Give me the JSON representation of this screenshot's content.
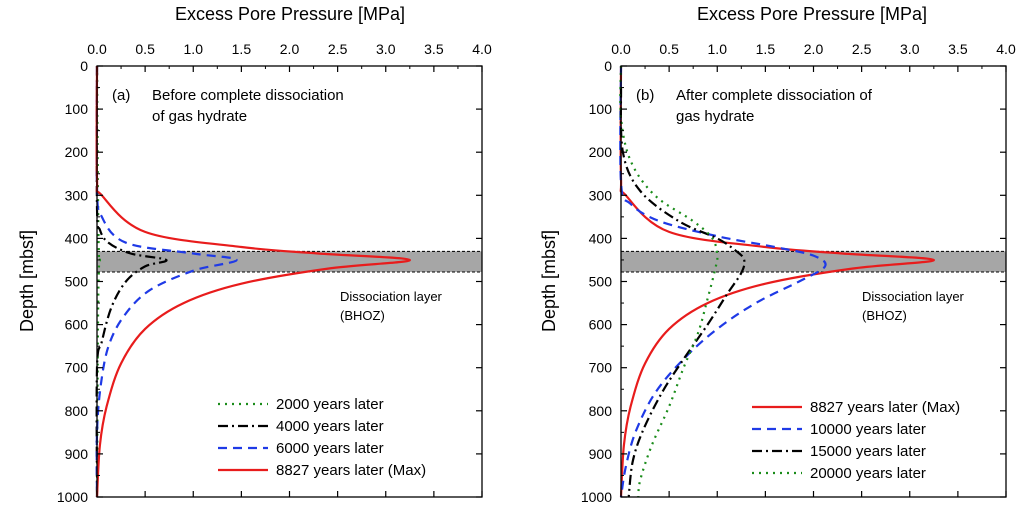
{
  "chart_data": [
    {
      "type": "line",
      "panel_label": "(a)",
      "annotation": [
        "Before complete dissociation",
        "of gas hydrate"
      ],
      "xlabel": "Excess Pore Pressure [MPa]",
      "ylabel": "Depth [mbsf]",
      "xlim": [
        0,
        4.0
      ],
      "ylim": [
        0,
        1000
      ],
      "y_inverted": true,
      "x_axis_position": "top",
      "xticks": [
        "0.0",
        "0.5",
        "1.0",
        "1.5",
        "2.0",
        "2.5",
        "3.0",
        "3.5",
        "4.0"
      ],
      "yticks": [
        "0",
        "100",
        "200",
        "300",
        "400",
        "500",
        "600",
        "700",
        "800",
        "900",
        "1000"
      ],
      "band": {
        "y_top": 430,
        "y_bottom": 478,
        "label": [
          "Dissociation layer",
          "(BHOZ)"
        ]
      },
      "legend_position": "bottom-right",
      "series": [
        {
          "name": "2000 years later",
          "color": "#1a8c1a",
          "style": "dotted",
          "points": [
            [
              0,
              0
            ],
            [
              0.01,
              300
            ],
            [
              0.02,
              440
            ],
            [
              0.03,
              450
            ],
            [
              0.02,
              470
            ],
            [
              0.01,
              600
            ],
            [
              0,
              1000
            ]
          ]
        },
        {
          "name": "4000 years later",
          "color": "#000000",
          "style": "dashdot",
          "points": [
            [
              0,
              0
            ],
            [
              0,
              330
            ],
            [
              0.03,
              380
            ],
            [
              0.12,
              410
            ],
            [
              0.35,
              435
            ],
            [
              0.72,
              450
            ],
            [
              0.5,
              465
            ],
            [
              0.3,
              500
            ],
            [
              0.15,
              560
            ],
            [
              0.05,
              640
            ],
            [
              0,
              700
            ],
            [
              0,
              1000
            ]
          ]
        },
        {
          "name": "6000 years later",
          "color": "#1f3ae6",
          "style": "dashed",
          "points": [
            [
              0,
              0
            ],
            [
              0,
              280
            ],
            [
              0.05,
              350
            ],
            [
              0.3,
              410
            ],
            [
              1.0,
              435
            ],
            [
              1.45,
              450
            ],
            [
              1.0,
              475
            ],
            [
              0.55,
              520
            ],
            [
              0.28,
              580
            ],
            [
              0.12,
              650
            ],
            [
              0.04,
              740
            ],
            [
              0,
              850
            ],
            [
              0,
              1000
            ]
          ]
        },
        {
          "name": "8827 years later (Max)",
          "color": "#e81c1c",
          "style": "solid",
          "points": [
            [
              0,
              0
            ],
            [
              0,
              260
            ],
            [
              0.05,
              300
            ],
            [
              0.5,
              385
            ],
            [
              1.5,
              420
            ],
            [
              2.3,
              435
            ],
            [
              3.25,
              450
            ],
            [
              2.4,
              470
            ],
            [
              1.5,
              505
            ],
            [
              0.9,
              550
            ],
            [
              0.5,
              610
            ],
            [
              0.25,
              690
            ],
            [
              0.1,
              790
            ],
            [
              0.03,
              880
            ],
            [
              0,
              1000
            ]
          ]
        }
      ]
    },
    {
      "type": "line",
      "panel_label": "(b)",
      "annotation": [
        "After complete dissociation of",
        "gas hydrate"
      ],
      "xlabel": "Excess Pore Pressure [MPa]",
      "ylabel": "Depth [mbsf]",
      "xlim": [
        0,
        4.0
      ],
      "ylim": [
        0,
        1000
      ],
      "y_inverted": true,
      "x_axis_position": "top",
      "xticks": [
        "0.0",
        "0.5",
        "1.0",
        "1.5",
        "2.0",
        "2.5",
        "3.0",
        "3.5",
        "4.0"
      ],
      "yticks": [
        "0",
        "100",
        "200",
        "300",
        "400",
        "500",
        "600",
        "700",
        "800",
        "900",
        "1000"
      ],
      "band": {
        "y_top": 430,
        "y_bottom": 478,
        "label": [
          "Dissociation layer",
          "(BHOZ)"
        ]
      },
      "legend_position": "bottom-right",
      "series": [
        {
          "name": "8827  years later (Max)",
          "color": "#e81c1c",
          "style": "solid",
          "points": [
            [
              0,
              0
            ],
            [
              0,
              260
            ],
            [
              0.05,
              300
            ],
            [
              0.5,
              385
            ],
            [
              1.5,
              420
            ],
            [
              2.3,
              435
            ],
            [
              3.25,
              450
            ],
            [
              2.4,
              470
            ],
            [
              1.5,
              505
            ],
            [
              0.9,
              550
            ],
            [
              0.5,
              610
            ],
            [
              0.25,
              690
            ],
            [
              0.1,
              790
            ],
            [
              0.03,
              880
            ],
            [
              0,
              1000
            ]
          ]
        },
        {
          "name": "10000 years later",
          "color": "#1f3ae6",
          "style": "dashed",
          "points": [
            [
              0,
              0
            ],
            [
              0,
              270
            ],
            [
              0.1,
              320
            ],
            [
              0.4,
              360
            ],
            [
              1.0,
              395
            ],
            [
              1.6,
              420
            ],
            [
              2.0,
              440
            ],
            [
              2.12,
              465
            ],
            [
              1.85,
              500
            ],
            [
              1.4,
              550
            ],
            [
              1.0,
              610
            ],
            [
              0.65,
              680
            ],
            [
              0.35,
              760
            ],
            [
              0.15,
              850
            ],
            [
              0.05,
              930
            ],
            [
              0,
              1000
            ]
          ]
        },
        {
          "name": "15000 years later",
          "color": "#000000",
          "style": "dashdot",
          "points": [
            [
              0,
              50
            ],
            [
              0.02,
              200
            ],
            [
              0.2,
              290
            ],
            [
              0.6,
              360
            ],
            [
              1.0,
              400
            ],
            [
              1.2,
              430
            ],
            [
              1.28,
              450
            ],
            [
              1.25,
              480
            ],
            [
              1.1,
              530
            ],
            [
              0.9,
              600
            ],
            [
              0.65,
              680
            ],
            [
              0.42,
              760
            ],
            [
              0.22,
              850
            ],
            [
              0.12,
              920
            ],
            [
              0.08,
              1000
            ]
          ]
        },
        {
          "name": "20000 years later",
          "color": "#1a8c1a",
          "style": "dotted",
          "points": [
            [
              0,
              0
            ],
            [
              0,
              120
            ],
            [
              0.1,
              220
            ],
            [
              0.35,
              300
            ],
            [
              0.75,
              360
            ],
            [
              0.95,
              400
            ],
            [
              1.0,
              440
            ],
            [
              0.98,
              470
            ],
            [
              0.9,
              540
            ],
            [
              0.8,
              620
            ],
            [
              0.65,
              700
            ],
            [
              0.5,
              790
            ],
            [
              0.32,
              880
            ],
            [
              0.2,
              960
            ],
            [
              0.18,
              1000
            ]
          ]
        }
      ]
    }
  ]
}
